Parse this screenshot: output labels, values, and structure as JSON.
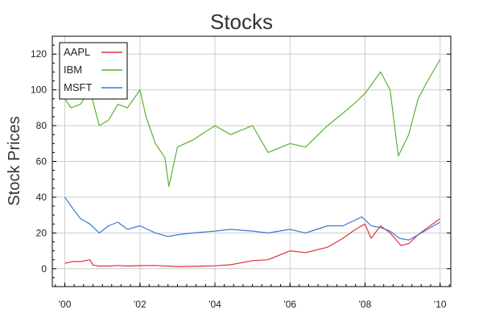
{
  "chart_data": {
    "type": "line",
    "title": "Stocks",
    "xlabel": "",
    "ylabel": "Stock Prices",
    "xlim": [
      "1999-09-01",
      "2010-04-15"
    ],
    "ylim": [
      -10,
      130
    ],
    "x_tick_labels": [
      {
        "date": "2000-01-01",
        "label": "'00"
      },
      {
        "date": "2002-01-01",
        "label": "'02"
      },
      {
        "date": "2004-01-01",
        "label": "'04"
      },
      {
        "date": "2006-01-01",
        "label": "'06"
      },
      {
        "date": "2008-01-01",
        "label": "'08"
      },
      {
        "date": "2010-01-01",
        "label": "'10"
      }
    ],
    "y_ticks": [
      0,
      20,
      40,
      60,
      80,
      100,
      120
    ],
    "y_tick_labels": [
      "0",
      "20",
      "40",
      "60",
      "80",
      "100",
      "120"
    ],
    "grid": true,
    "legend_position": "top-left",
    "series": [
      {
        "name": "AAPL",
        "color": "#e0303c",
        "x": [
          "2000-01-01",
          "2000-03-15",
          "2000-06-01",
          "2000-09-01",
          "2000-09-30",
          "2000-12-01",
          "2001-03-01",
          "2001-06-01",
          "2001-09-01",
          "2002-01-01",
          "2002-06-01",
          "2003-01-01",
          "2003-06-01",
          "2004-01-01",
          "2004-06-01",
          "2005-01-01",
          "2005-06-01",
          "2006-01-01",
          "2006-06-01",
          "2007-01-01",
          "2007-06-01",
          "2007-10-01",
          "2007-12-31",
          "2008-03-01",
          "2008-06-01",
          "2008-09-01",
          "2008-12-15",
          "2009-03-01",
          "2009-06-01",
          "2009-09-01",
          "2010-01-01"
        ],
        "y": [
          3,
          4,
          4,
          5,
          2,
          1.5,
          1.5,
          1.8,
          1.5,
          1.7,
          1.8,
          1.2,
          1.3,
          1.6,
          2.2,
          4.5,
          5,
          10,
          9,
          12,
          17,
          22,
          25,
          17,
          24,
          20,
          13,
          14,
          19,
          23,
          28
        ]
      },
      {
        "name": "IBM",
        "color": "#5ab232",
        "x": [
          "2000-01-01",
          "2000-03-01",
          "2000-06-01",
          "2000-09-01",
          "2000-12-01",
          "2001-03-01",
          "2001-06-01",
          "2001-09-01",
          "2002-01-01",
          "2002-03-01",
          "2002-06-01",
          "2002-09-01",
          "2002-10-10",
          "2003-01-01",
          "2003-06-01",
          "2004-01-01",
          "2004-06-01",
          "2005-01-01",
          "2005-06-01",
          "2006-01-01",
          "2006-06-01",
          "2007-01-01",
          "2007-06-01",
          "2007-10-01",
          "2008-01-01",
          "2008-06-01",
          "2008-09-01",
          "2008-11-20",
          "2009-03-01",
          "2009-06-01",
          "2009-09-01",
          "2010-01-01"
        ],
        "y": [
          95,
          90,
          92,
          100,
          80,
          83,
          92,
          90,
          100,
          85,
          70,
          62,
          46,
          68,
          72,
          80,
          75,
          80,
          65,
          70,
          68,
          80,
          87,
          93,
          98,
          110,
          100,
          63,
          75,
          95,
          105,
          117
        ]
      },
      {
        "name": "MSFT",
        "color": "#3b78d8",
        "x": [
          "2000-01-01",
          "2000-03-01",
          "2000-06-01",
          "2000-09-01",
          "2000-12-01",
          "2001-03-01",
          "2001-06-01",
          "2001-09-01",
          "2002-01-01",
          "2002-06-01",
          "2002-10-01",
          "2003-01-01",
          "2003-06-01",
          "2004-01-01",
          "2004-06-01",
          "2005-01-01",
          "2005-06-01",
          "2006-01-01",
          "2006-06-01",
          "2007-01-01",
          "2007-06-01",
          "2007-12-01",
          "2008-03-01",
          "2008-06-01",
          "2008-09-01",
          "2008-12-01",
          "2009-03-01",
          "2009-06-01",
          "2009-09-01",
          "2010-01-01"
        ],
        "y": [
          40,
          35,
          28,
          25,
          20,
          24,
          26,
          22,
          24,
          20,
          18,
          19,
          20,
          21,
          22,
          21,
          20,
          22,
          20,
          24,
          24,
          29,
          24,
          23,
          21,
          17,
          16,
          19,
          22,
          26
        ]
      }
    ]
  }
}
